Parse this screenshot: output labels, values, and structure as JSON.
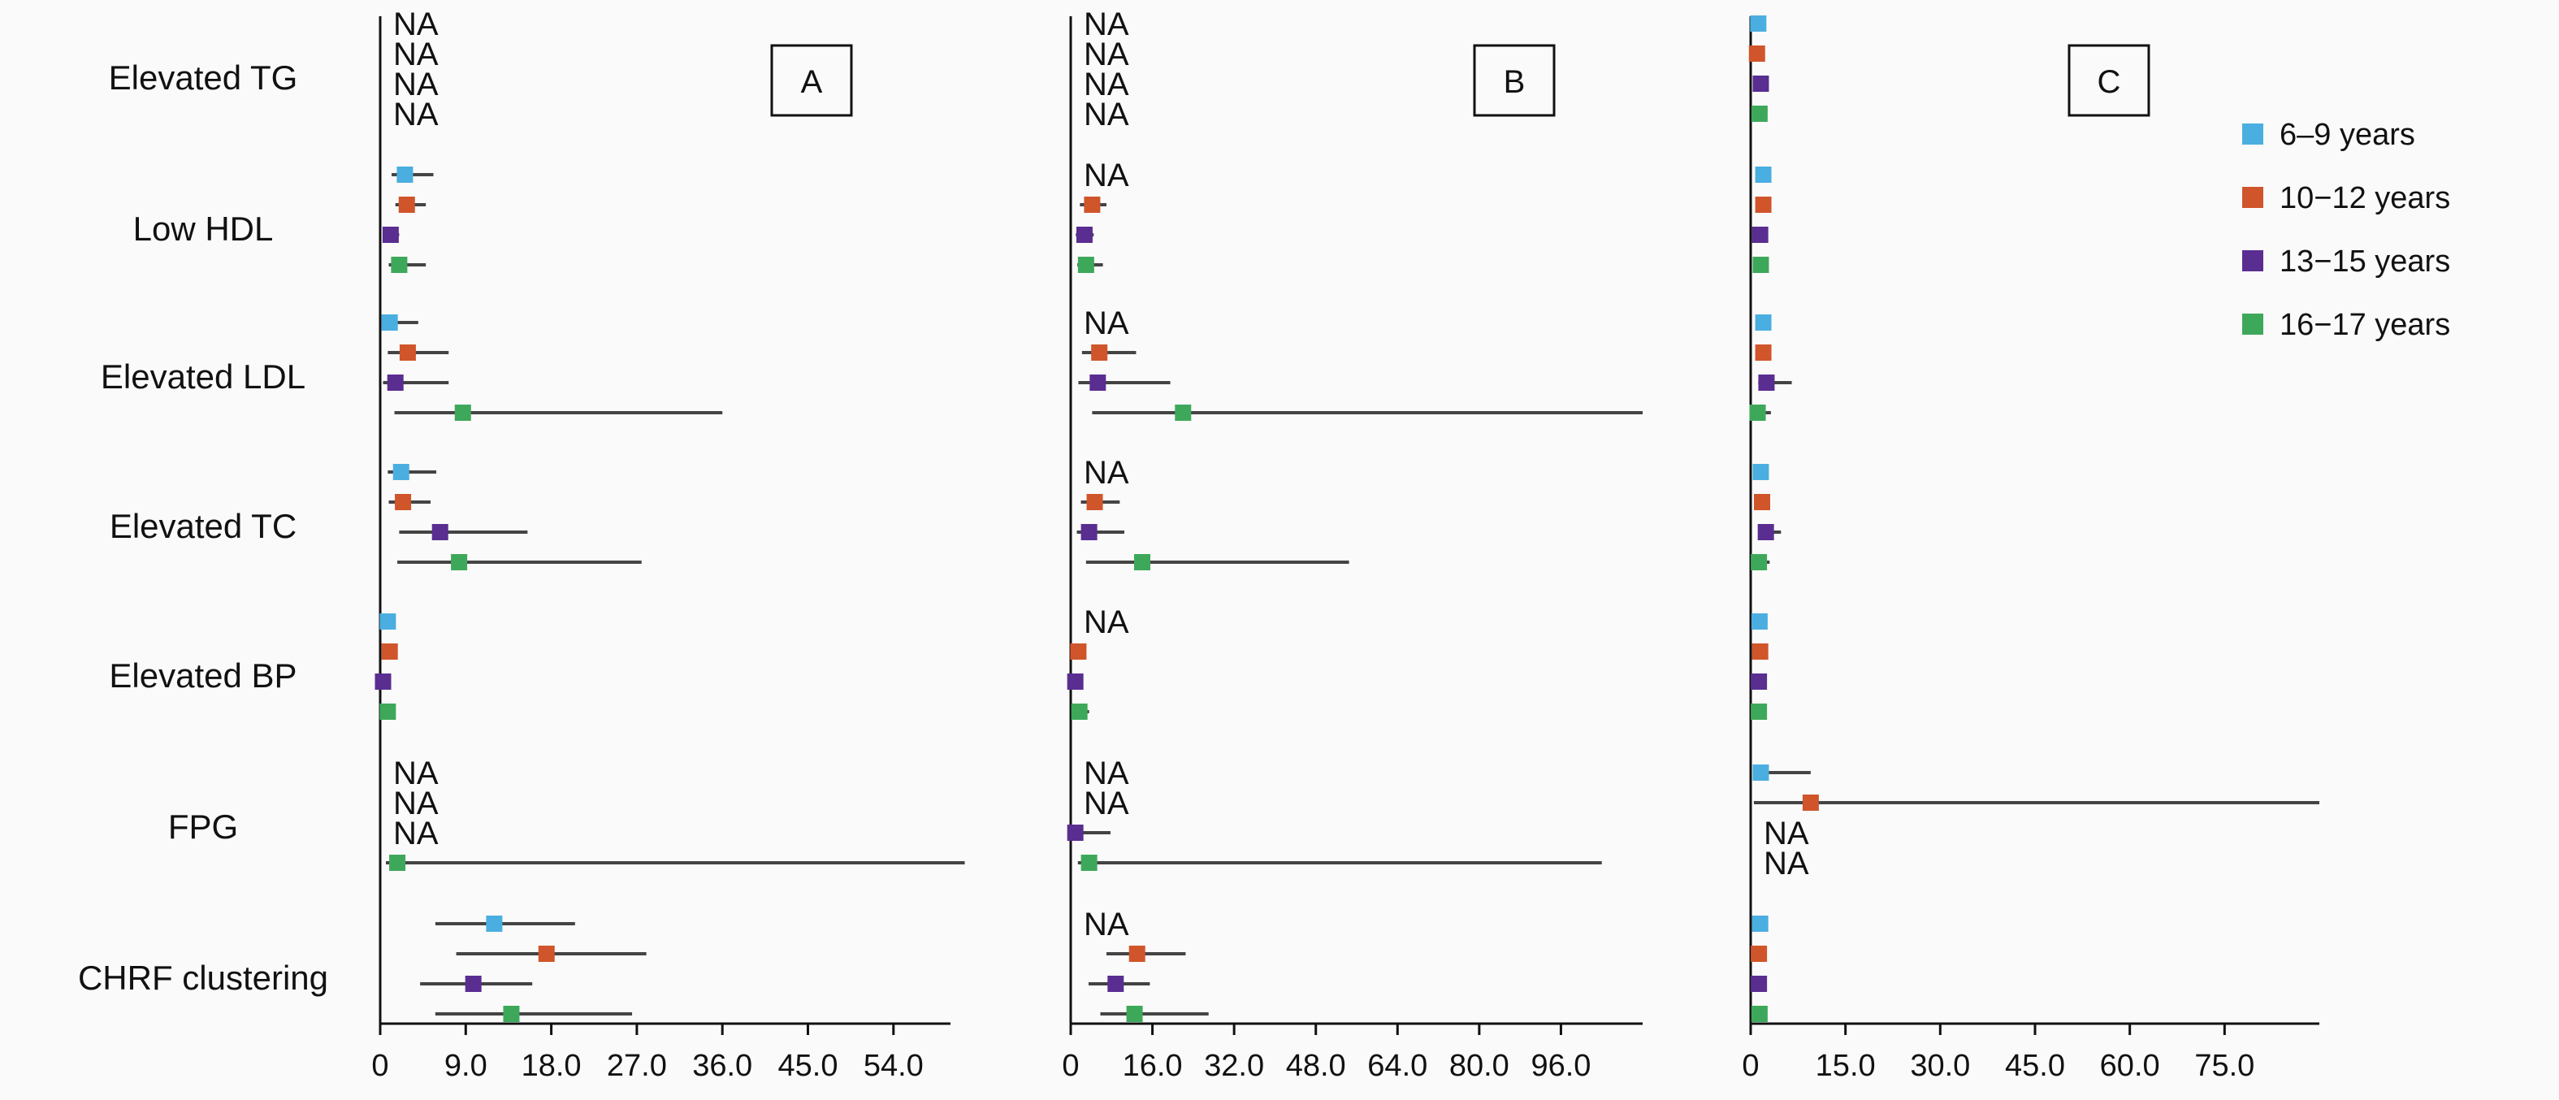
{
  "chart_data": {
    "type": "forest",
    "categories": [
      "Elevated TG",
      "Low HDL",
      "Elevated LDL",
      "Elevated TC",
      "Elevated BP",
      "FPG",
      "CHRF clustering"
    ],
    "series": [
      {
        "name": "6–9 years",
        "color": "#4baee0"
      },
      {
        "name": "10−12 years",
        "color": "#d0552a"
      },
      {
        "name": "13−15 years",
        "color": "#5a2d91"
      },
      {
        "name": "16−17 years",
        "color": "#3ea85a"
      }
    ],
    "panels": [
      {
        "label": "A",
        "xlim": [
          0,
          60
        ],
        "ticks": [
          "0",
          "9.0",
          "18.0",
          "27.0",
          "36.0",
          "45.0",
          "54.0"
        ],
        "tick_values": [
          0,
          9,
          18,
          27,
          36,
          45,
          54
        ],
        "data": [
          [
            null,
            null,
            null,
            null
          ],
          [
            {
              "est": 2.6,
              "lo": 1.2,
              "hi": 5.6
            },
            {
              "est": 2.8,
              "lo": 1.6,
              "hi": 4.8
            },
            {
              "est": 1.1,
              "lo": 0.5,
              "hi": 2.0
            },
            {
              "est": 2.0,
              "lo": 0.9,
              "hi": 4.8
            }
          ],
          [
            {
              "est": 1.0,
              "lo": 0.4,
              "hi": 4.0
            },
            {
              "est": 2.9,
              "lo": 0.8,
              "hi": 7.2
            },
            {
              "est": 1.6,
              "lo": 0.3,
              "hi": 7.2
            },
            {
              "est": 8.7,
              "lo": 1.5,
              "hi": 36.0
            }
          ],
          [
            {
              "est": 2.2,
              "lo": 0.8,
              "hi": 5.9
            },
            {
              "est": 2.4,
              "lo": 0.9,
              "hi": 5.3
            },
            {
              "est": 6.3,
              "lo": 2.0,
              "hi": 15.5
            },
            {
              "est": 8.3,
              "lo": 1.8,
              "hi": 27.5
            }
          ],
          [
            {
              "est": 0.8,
              "lo": 0.4,
              "hi": 1.6
            },
            {
              "est": 1.0,
              "lo": 0.5,
              "hi": 1.7
            },
            {
              "est": 0.3,
              "lo": 0.1,
              "hi": 0.9
            },
            {
              "est": 0.8,
              "lo": 0.3,
              "hi": 1.6
            }
          ],
          [
            null,
            null,
            null,
            {
              "est": 1.8,
              "lo": 0.6,
              "hi": 61.5
            }
          ],
          [
            {
              "est": 12.0,
              "lo": 5.8,
              "hi": 20.5
            },
            {
              "est": 17.5,
              "lo": 8.0,
              "hi": 28.0
            },
            {
              "est": 9.8,
              "lo": 4.2,
              "hi": 16.0
            },
            {
              "est": 13.8,
              "lo": 5.8,
              "hi": 26.5
            }
          ]
        ],
        "na": [
          [
            1,
            1,
            1,
            1
          ],
          [
            0,
            0,
            0,
            0
          ],
          [
            0,
            0,
            0,
            0
          ],
          [
            0,
            0,
            0,
            0
          ],
          [
            0,
            0,
            0,
            0
          ],
          [
            1,
            1,
            1,
            0
          ],
          [
            0,
            0,
            0,
            0
          ]
        ]
      },
      {
        "label": "B",
        "xlim": [
          0,
          112
        ],
        "ticks": [
          "0",
          "16.0",
          "32.0",
          "48.0",
          "64.0",
          "80.0",
          "96.0"
        ],
        "tick_values": [
          0,
          16,
          32,
          48,
          64,
          80,
          96
        ],
        "data": [
          [
            null,
            null,
            null,
            null
          ],
          [
            null,
            {
              "est": 4.2,
              "lo": 1.8,
              "hi": 7.0
            },
            {
              "est": 2.7,
              "lo": 1.0,
              "hi": 4.5
            },
            {
              "est": 3.0,
              "lo": 1.3,
              "hi": 6.3
            }
          ],
          [
            null,
            {
              "est": 5.6,
              "lo": 2.2,
              "hi": 12.8
            },
            {
              "est": 5.3,
              "lo": 1.5,
              "hi": 19.5
            },
            {
              "est": 22.0,
              "lo": 4.2,
              "hi": 112.0
            }
          ],
          [
            null,
            {
              "est": 4.7,
              "lo": 2.0,
              "hi": 9.6
            },
            {
              "est": 3.6,
              "lo": 1.2,
              "hi": 10.5
            },
            {
              "est": 14.0,
              "lo": 3.0,
              "hi": 54.5
            }
          ],
          [
            null,
            {
              "est": 1.5,
              "lo": 0.7,
              "hi": 3.0
            },
            {
              "est": 0.9,
              "lo": 0.3,
              "hi": 2.2
            },
            {
              "est": 1.7,
              "lo": 0.7,
              "hi": 3.6
            }
          ],
          [
            null,
            null,
            {
              "est": 0.9,
              "lo": 0.2,
              "hi": 7.8
            },
            {
              "est": 3.6,
              "lo": 1.4,
              "hi": 104.0
            }
          ],
          [
            null,
            {
              "est": 13.0,
              "lo": 7.0,
              "hi": 22.5
            },
            {
              "est": 8.8,
              "lo": 3.5,
              "hi": 15.5
            },
            {
              "est": 12.5,
              "lo": 5.8,
              "hi": 27.0
            }
          ]
        ],
        "na": [
          [
            1,
            1,
            1,
            1
          ],
          [
            1,
            0,
            0,
            0
          ],
          [
            1,
            0,
            0,
            0
          ],
          [
            1,
            0,
            0,
            0
          ],
          [
            1,
            0,
            0,
            0
          ],
          [
            1,
            1,
            0,
            0
          ],
          [
            1,
            0,
            0,
            0
          ]
        ]
      },
      {
        "label": "C",
        "xlim": [
          0,
          90
        ],
        "ticks": [
          "0",
          "15.0",
          "30.0",
          "45.0",
          "60.0",
          "75.0"
        ],
        "tick_values": [
          0,
          15,
          30,
          45,
          60,
          75
        ],
        "data": [
          [
            {
              "est": 1.2,
              "lo": 0.6,
              "hi": 2.0
            },
            {
              "est": 1.0,
              "lo": 0.4,
              "hi": 1.8
            },
            {
              "est": 1.6,
              "lo": 0.8,
              "hi": 2.6
            },
            {
              "est": 1.4,
              "lo": 0.6,
              "hi": 2.6
            }
          ],
          [
            {
              "est": 2.0,
              "lo": 1.2,
              "hi": 3.0
            },
            {
              "est": 2.0,
              "lo": 1.2,
              "hi": 3.0
            },
            {
              "est": 1.5,
              "lo": 0.9,
              "hi": 2.4
            },
            {
              "est": 1.6,
              "lo": 0.9,
              "hi": 2.6
            }
          ],
          [
            {
              "est": 2.0,
              "lo": 1.2,
              "hi": 3.0
            },
            {
              "est": 2.0,
              "lo": 1.2,
              "hi": 3.0
            },
            {
              "est": 2.5,
              "lo": 1.2,
              "hi": 6.5
            },
            {
              "est": 1.1,
              "lo": 0.4,
              "hi": 3.2
            }
          ],
          [
            {
              "est": 1.6,
              "lo": 0.9,
              "hi": 2.6
            },
            {
              "est": 1.8,
              "lo": 1.0,
              "hi": 2.8
            },
            {
              "est": 2.4,
              "lo": 1.2,
              "hi": 4.8
            },
            {
              "est": 1.3,
              "lo": 0.5,
              "hi": 3.0
            }
          ],
          [
            {
              "est": 1.4,
              "lo": 0.8,
              "hi": 2.2
            },
            {
              "est": 1.5,
              "lo": 0.8,
              "hi": 2.4
            },
            {
              "est": 1.3,
              "lo": 0.6,
              "hi": 2.2
            },
            {
              "est": 1.3,
              "lo": 0.6,
              "hi": 2.4
            }
          ],
          [
            {
              "est": 1.6,
              "lo": 0.6,
              "hi": 9.5
            },
            {
              "est": 9.5,
              "lo": 0.5,
              "hi": 90.0
            },
            null,
            null
          ],
          [
            {
              "est": 1.5,
              "lo": 0.8,
              "hi": 2.6
            },
            {
              "est": 1.3,
              "lo": 0.7,
              "hi": 2.3
            },
            {
              "est": 1.3,
              "lo": 0.7,
              "hi": 2.3
            },
            {
              "est": 1.4,
              "lo": 0.7,
              "hi": 2.6
            }
          ]
        ],
        "na": [
          [
            0,
            0,
            0,
            0
          ],
          [
            0,
            0,
            0,
            0
          ],
          [
            0,
            0,
            0,
            0
          ],
          [
            0,
            0,
            0,
            0
          ],
          [
            0,
            0,
            0,
            0
          ],
          [
            0,
            0,
            1,
            1
          ],
          [
            0,
            0,
            0,
            0
          ]
        ]
      }
    ],
    "na_text": "NA",
    "legend_position": "top-right"
  }
}
